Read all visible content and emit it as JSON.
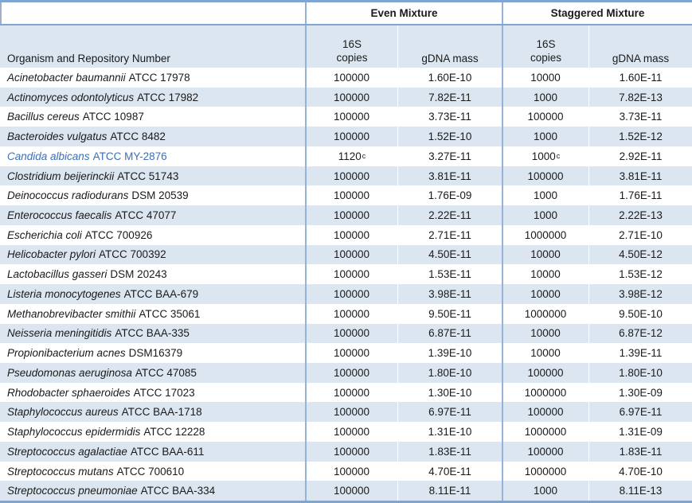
{
  "colors": {
    "border_blue": "#7fa5d3",
    "grid_blue": "#95b3d7",
    "row_alt_bg": "#dce6f1",
    "highlight_text": "#3a6fb7"
  },
  "table": {
    "group_headers": {
      "even": "Even Mixture",
      "staggered": "Staggered Mixture"
    },
    "organism_header": "Organism and Repository Number",
    "subheaders": {
      "copies_line1": "16S",
      "copies_line2": "copies",
      "gdna": "gDNA mass"
    },
    "rows": [
      {
        "organism": "Acinetobacter baumannii",
        "repo": "ATCC 17978",
        "even_copies": "100000",
        "even_copies_sup": "",
        "even_gdna": "1.60E-10",
        "stag_copies": "10000",
        "stag_copies_sup": "",
        "stag_gdna": "1.60E-11",
        "highlight": false
      },
      {
        "organism": "Actinomyces odontolyticus",
        "repo": "ATCC 17982",
        "even_copies": "100000",
        "even_copies_sup": "",
        "even_gdna": "7.82E-11",
        "stag_copies": "1000",
        "stag_copies_sup": "",
        "stag_gdna": "7.82E-13",
        "highlight": false
      },
      {
        "organism": "Bacillus cereus",
        "repo": "ATCC 10987",
        "even_copies": "100000",
        "even_copies_sup": "",
        "even_gdna": "3.73E-11",
        "stag_copies": "100000",
        "stag_copies_sup": "",
        "stag_gdna": "3.73E-11",
        "highlight": false
      },
      {
        "organism": "Bacteroides vulgatus",
        "repo": "ATCC 8482",
        "even_copies": "100000",
        "even_copies_sup": "",
        "even_gdna": "1.52E-10",
        "stag_copies": "1000",
        "stag_copies_sup": "",
        "stag_gdna": "1.52E-12",
        "highlight": false
      },
      {
        "organism": "Candida albicans",
        "repo": "ATCC MY-2876",
        "even_copies": "1120",
        "even_copies_sup": "c",
        "even_gdna": "3.27E-11",
        "stag_copies": "1000",
        "stag_copies_sup": "c",
        "stag_gdna": "2.92E-11",
        "highlight": true
      },
      {
        "organism": "Clostridium beijerinckii",
        "repo": "ATCC 51743",
        "even_copies": "100000",
        "even_copies_sup": "",
        "even_gdna": "3.81E-11",
        "stag_copies": "100000",
        "stag_copies_sup": "",
        "stag_gdna": "3.81E-11",
        "highlight": false
      },
      {
        "organism": "Deinococcus radiodurans",
        "repo": "DSM 20539",
        "even_copies": "100000",
        "even_copies_sup": "",
        "even_gdna": "1.76E-09",
        "stag_copies": "1000",
        "stag_copies_sup": "",
        "stag_gdna": "1.76E-11",
        "highlight": false
      },
      {
        "organism": "Enterococcus faecalis",
        "repo": "ATCC 47077",
        "even_copies": "100000",
        "even_copies_sup": "",
        "even_gdna": "2.22E-11",
        "stag_copies": "1000",
        "stag_copies_sup": "",
        "stag_gdna": "2.22E-13",
        "highlight": false
      },
      {
        "organism": "Escherichia coli",
        "repo": "ATCC 700926",
        "even_copies": "100000",
        "even_copies_sup": "",
        "even_gdna": "2.71E-11",
        "stag_copies": "1000000",
        "stag_copies_sup": "",
        "stag_gdna": "2.71E-10",
        "highlight": false
      },
      {
        "organism": "Helicobacter pylori",
        "repo": "ATCC 700392",
        "even_copies": "100000",
        "even_copies_sup": "",
        "even_gdna": "4.50E-11",
        "stag_copies": "10000",
        "stag_copies_sup": "",
        "stag_gdna": "4.50E-12",
        "highlight": false
      },
      {
        "organism": "Lactobacillus gasseri",
        "repo": "DSM 20243",
        "even_copies": "100000",
        "even_copies_sup": "",
        "even_gdna": "1.53E-11",
        "stag_copies": "10000",
        "stag_copies_sup": "",
        "stag_gdna": "1.53E-12",
        "highlight": false
      },
      {
        "organism": "Listeria monocytogenes",
        "repo": "ATCC BAA-679",
        "even_copies": "100000",
        "even_copies_sup": "",
        "even_gdna": "3.98E-11",
        "stag_copies": "10000",
        "stag_copies_sup": "",
        "stag_gdna": "3.98E-12",
        "highlight": false
      },
      {
        "organism": "Methanobrevibacter smithii",
        "repo": "ATCC 35061",
        "even_copies": "100000",
        "even_copies_sup": "",
        "even_gdna": "9.50E-11",
        "stag_copies": "1000000",
        "stag_copies_sup": "",
        "stag_gdna": "9.50E-10",
        "highlight": false
      },
      {
        "organism": "Neisseria meningitidis",
        "repo": "ATCC BAA-335",
        "even_copies": "100000",
        "even_copies_sup": "",
        "even_gdna": "6.87E-11",
        "stag_copies": "10000",
        "stag_copies_sup": "",
        "stag_gdna": "6.87E-12",
        "highlight": false
      },
      {
        "organism": "Propionibacterium acnes",
        "repo": "DSM16379",
        "even_copies": "100000",
        "even_copies_sup": "",
        "even_gdna": "1.39E-10",
        "stag_copies": "10000",
        "stag_copies_sup": "",
        "stag_gdna": "1.39E-11",
        "highlight": false
      },
      {
        "organism": "Pseudomonas aeruginosa",
        "repo": "ATCC 47085",
        "even_copies": "100000",
        "even_copies_sup": "",
        "even_gdna": "1.80E-10",
        "stag_copies": "100000",
        "stag_copies_sup": "",
        "stag_gdna": "1.80E-10",
        "highlight": false
      },
      {
        "organism": "Rhodobacter sphaeroides",
        "repo": "ATCC 17023",
        "even_copies": "100000",
        "even_copies_sup": "",
        "even_gdna": "1.30E-10",
        "stag_copies": "1000000",
        "stag_copies_sup": "",
        "stag_gdna": "1.30E-09",
        "highlight": false
      },
      {
        "organism": "Staphylococcus aureus",
        "repo": "ATCC BAA-1718",
        "even_copies": "100000",
        "even_copies_sup": "",
        "even_gdna": "6.97E-11",
        "stag_copies": "100000",
        "stag_copies_sup": "",
        "stag_gdna": "6.97E-11",
        "highlight": false
      },
      {
        "organism": "Staphylococcus epidermidis",
        "repo": "ATCC 12228",
        "even_copies": "100000",
        "even_copies_sup": "",
        "even_gdna": "1.31E-10",
        "stag_copies": "1000000",
        "stag_copies_sup": "",
        "stag_gdna": "1.31E-09",
        "highlight": false
      },
      {
        "organism": "Streptococcus agalactiae",
        "repo": "ATCC BAA-611",
        "even_copies": "100000",
        "even_copies_sup": "",
        "even_gdna": "1.83E-11",
        "stag_copies": "100000",
        "stag_copies_sup": "",
        "stag_gdna": "1.83E-11",
        "highlight": false
      },
      {
        "organism": "Streptococcus mutans",
        "repo": "ATCC 700610",
        "even_copies": "100000",
        "even_copies_sup": "",
        "even_gdna": "4.70E-11",
        "stag_copies": "1000000",
        "stag_copies_sup": "",
        "stag_gdna": "4.70E-10",
        "highlight": false
      },
      {
        "organism": "Streptococcus pneumoniae",
        "repo": "ATCC BAA-334",
        "even_copies": "100000",
        "even_copies_sup": "",
        "even_gdna": "8.11E-11",
        "stag_copies": "1000",
        "stag_copies_sup": "",
        "stag_gdna": "8.11E-13",
        "highlight": false
      }
    ]
  }
}
